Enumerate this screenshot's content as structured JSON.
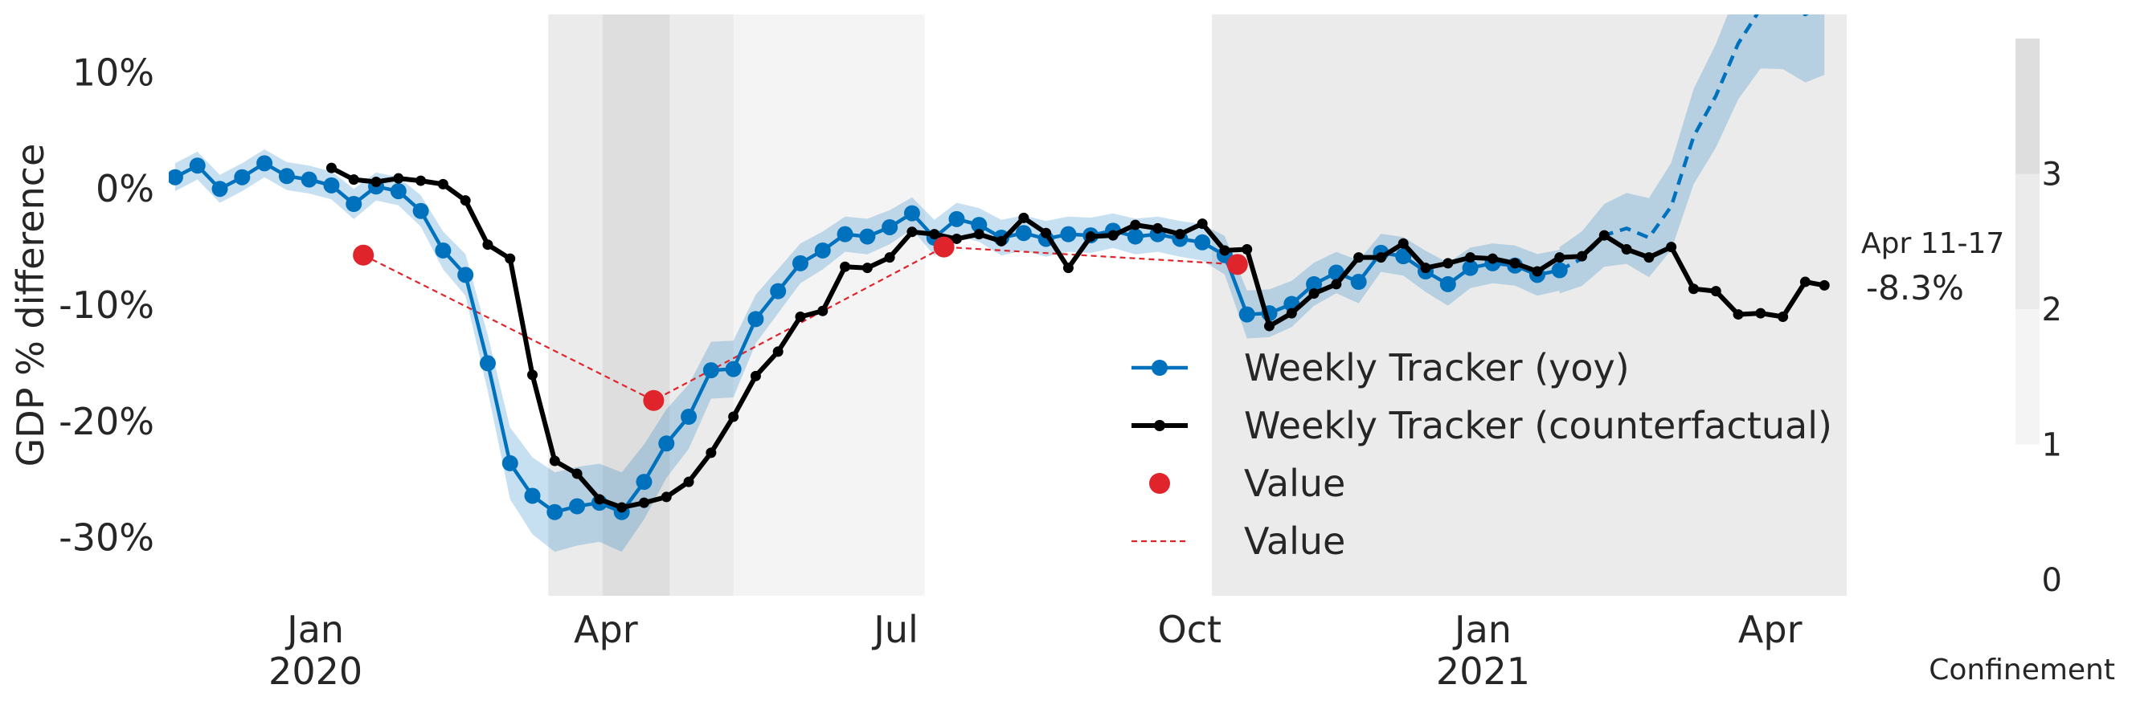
{
  "chart_data": {
    "type": "line",
    "title": "",
    "ylabel": "GDP % difference",
    "xlabel": "",
    "ylim": [
      -35,
      15
    ],
    "x_range": [
      "2019-11-16",
      "2021-04-25"
    ],
    "y_ticks": [
      10,
      0,
      -10,
      -20,
      -30
    ],
    "y_tick_labels": [
      "10%",
      "0%",
      "-10%",
      "-20%",
      "-30%"
    ],
    "x_ticks": [
      "2020-01-01",
      "2020-04-01",
      "2020-07-01",
      "2020-10-01",
      "2021-01-01",
      "2021-04-01"
    ],
    "x_tick_labels": [
      "Jan\n2020",
      "Apr",
      "Jul",
      "Oct",
      "Jan\n2021",
      "Apr"
    ],
    "grid": false,
    "legend_position": "lower-right",
    "legend": [
      {
        "label": "Weekly Tracker (yoy)",
        "type": "line-marker",
        "color": "#0072bd"
      },
      {
        "label": "Weekly Tracker (counterfactual)",
        "type": "line-marker",
        "color": "#000000"
      },
      {
        "label": "Value",
        "type": "marker",
        "color": "#e0242b"
      },
      {
        "label": "Value",
        "type": "dashed",
        "color": "#e0242b"
      }
    ],
    "annotation": {
      "date_label": "Apr 11-17",
      "value_label": "-8.3%",
      "x": "2021-04-14",
      "y": -8.3
    },
    "colorbar": {
      "title": "Confinement",
      "ticks": [
        0,
        1,
        2,
        3
      ],
      "tick_labels": [
        "0",
        "1",
        "2",
        "3"
      ],
      "range": [
        0,
        4
      ]
    },
    "confinement_periods": [
      {
        "start": "2020-03-14",
        "end": "2020-07-10",
        "level": 1
      },
      {
        "start": "2020-03-14",
        "end": "2020-05-11",
        "level": 2
      },
      {
        "start": "2020-03-31",
        "end": "2020-05-11",
        "level": 2
      },
      {
        "start": "2020-03-31",
        "end": "2020-04-21",
        "level": 3
      },
      {
        "start": "2020-10-08",
        "end": "2021-04-25",
        "level": 2
      }
    ],
    "series": [
      {
        "name": "Weekly Tracker (yoy)",
        "color": "#0072bd",
        "style": "line-marker",
        "x": [
          "2019-11-18",
          "2019-11-25",
          "2019-12-02",
          "2019-12-09",
          "2019-12-16",
          "2019-12-23",
          "2019-12-30",
          "2020-01-06",
          "2020-01-13",
          "2020-01-20",
          "2020-01-27",
          "2020-02-03",
          "2020-02-10",
          "2020-02-17",
          "2020-02-24",
          "2020-03-02",
          "2020-03-09",
          "2020-03-16",
          "2020-03-23",
          "2020-03-30",
          "2020-04-06",
          "2020-04-13",
          "2020-04-20",
          "2020-04-27",
          "2020-05-04",
          "2020-05-11",
          "2020-05-18",
          "2020-05-25",
          "2020-06-01",
          "2020-06-08",
          "2020-06-15",
          "2020-06-22",
          "2020-06-29",
          "2020-07-06",
          "2020-07-13",
          "2020-07-20",
          "2020-07-27",
          "2020-08-03",
          "2020-08-10",
          "2020-08-17",
          "2020-08-24",
          "2020-08-31",
          "2020-09-07",
          "2020-09-14",
          "2020-09-21",
          "2020-09-28",
          "2020-10-05",
          "2020-10-12",
          "2020-10-19",
          "2020-10-26",
          "2020-11-02",
          "2020-11-09",
          "2020-11-16",
          "2020-11-23",
          "2020-11-30",
          "2020-12-07",
          "2020-12-14",
          "2020-12-21",
          "2020-12-28",
          "2021-01-04",
          "2021-01-11",
          "2021-01-18",
          "2021-01-25"
        ],
        "y": [
          1.0,
          2.0,
          0.0,
          1.0,
          2.2,
          1.1,
          0.8,
          0.3,
          -1.3,
          0.2,
          -0.2,
          -1.9,
          -5.3,
          -7.4,
          -15.0,
          -23.6,
          -26.4,
          -27.8,
          -27.3,
          -27.0,
          -27.8,
          -25.2,
          -21.9,
          -19.6,
          -15.6,
          -15.5,
          -11.2,
          -8.8,
          -6.4,
          -5.3,
          -3.9,
          -4.1,
          -3.3,
          -2.1,
          -4.2,
          -2.6,
          -3.1,
          -4.2,
          -3.8,
          -4.3,
          -3.9,
          -4.0,
          -3.6,
          -4.1,
          -3.9,
          -4.3,
          -4.6,
          -5.7,
          -10.8,
          -10.7,
          -9.9,
          -8.2,
          -7.2,
          -8.0,
          -5.5,
          -5.8,
          -7.1,
          -8.2,
          -6.8,
          -6.4,
          -6.6,
          -7.4,
          -7.0
        ]
      },
      {
        "name": "Weekly Tracker (counterfactual)",
        "color": "#000000",
        "style": "line-marker",
        "x": [
          "2020-01-06",
          "2020-01-13",
          "2020-01-20",
          "2020-01-27",
          "2020-02-03",
          "2020-02-10",
          "2020-02-17",
          "2020-02-24",
          "2020-03-02",
          "2020-03-09",
          "2020-03-16",
          "2020-03-23",
          "2020-03-30",
          "2020-04-06",
          "2020-04-13",
          "2020-04-20",
          "2020-04-27",
          "2020-05-04",
          "2020-05-11",
          "2020-05-18",
          "2020-05-25",
          "2020-06-01",
          "2020-06-08",
          "2020-06-15",
          "2020-06-22",
          "2020-06-29",
          "2020-07-06",
          "2020-07-13",
          "2020-07-20",
          "2020-07-27",
          "2020-08-03",
          "2020-08-10",
          "2020-08-17",
          "2020-08-24",
          "2020-08-31",
          "2020-09-07",
          "2020-09-14",
          "2020-09-21",
          "2020-09-28",
          "2020-10-05",
          "2020-10-12",
          "2020-10-19",
          "2020-10-26",
          "2020-11-02",
          "2020-11-09",
          "2020-11-16",
          "2020-11-23",
          "2020-11-30",
          "2020-12-07",
          "2020-12-14",
          "2020-12-21",
          "2020-12-28",
          "2021-01-04",
          "2021-01-11",
          "2021-01-18",
          "2021-01-25",
          "2021-02-01",
          "2021-02-08",
          "2021-02-15",
          "2021-02-22",
          "2021-03-01",
          "2021-03-08",
          "2021-03-15",
          "2021-03-22",
          "2021-03-29",
          "2021-04-05",
          "2021-04-12",
          "2021-04-18"
        ],
        "y": [
          1.8,
          0.8,
          0.6,
          0.9,
          0.7,
          0.4,
          -1.0,
          -4.8,
          -6.0,
          -16.0,
          -23.4,
          -24.5,
          -26.7,
          -27.4,
          -27.0,
          -26.5,
          -25.2,
          -22.7,
          -19.6,
          -16.1,
          -14.0,
          -11.0,
          -10.5,
          -6.7,
          -6.8,
          -5.9,
          -3.7,
          -3.9,
          -4.3,
          -3.9,
          -4.5,
          -2.5,
          -3.8,
          -6.8,
          -4.1,
          -4.0,
          -3.1,
          -3.4,
          -3.9,
          -3.0,
          -5.3,
          -5.2,
          -11.8,
          -10.7,
          -9.0,
          -8.2,
          -5.9,
          -5.9,
          -4.7,
          -6.8,
          -6.4,
          -5.9,
          -6.0,
          -6.4,
          -7.1,
          -5.9,
          -5.8,
          -4.0,
          -5.2,
          -5.9,
          -5.0,
          -8.6,
          -8.8,
          -10.8,
          -10.7,
          -11.0,
          -8.0,
          -8.3
        ]
      },
      {
        "name": "Value",
        "color": "#e0242b",
        "style": "marker",
        "x": [
          "2020-01-16",
          "2020-04-16",
          "2020-07-16",
          "2020-10-16"
        ],
        "y": [
          -5.7,
          -18.2,
          -5.0,
          -6.5
        ]
      }
    ],
    "yoy_forecast": {
      "x": [
        "2021-01-25",
        "2021-02-01",
        "2021-02-08",
        "2021-02-15",
        "2021-02-22",
        "2021-03-01",
        "2021-03-08",
        "2021-03-15",
        "2021-03-22",
        "2021-03-29",
        "2021-04-05",
        "2021-04-12",
        "2021-04-18"
      ],
      "y": [
        -7.0,
        -6.0,
        -4.0,
        -3.4,
        -4.2,
        -1.5,
        4.5,
        8.0,
        12.5,
        15.5,
        15.8,
        15.0,
        16.0
      ]
    }
  }
}
